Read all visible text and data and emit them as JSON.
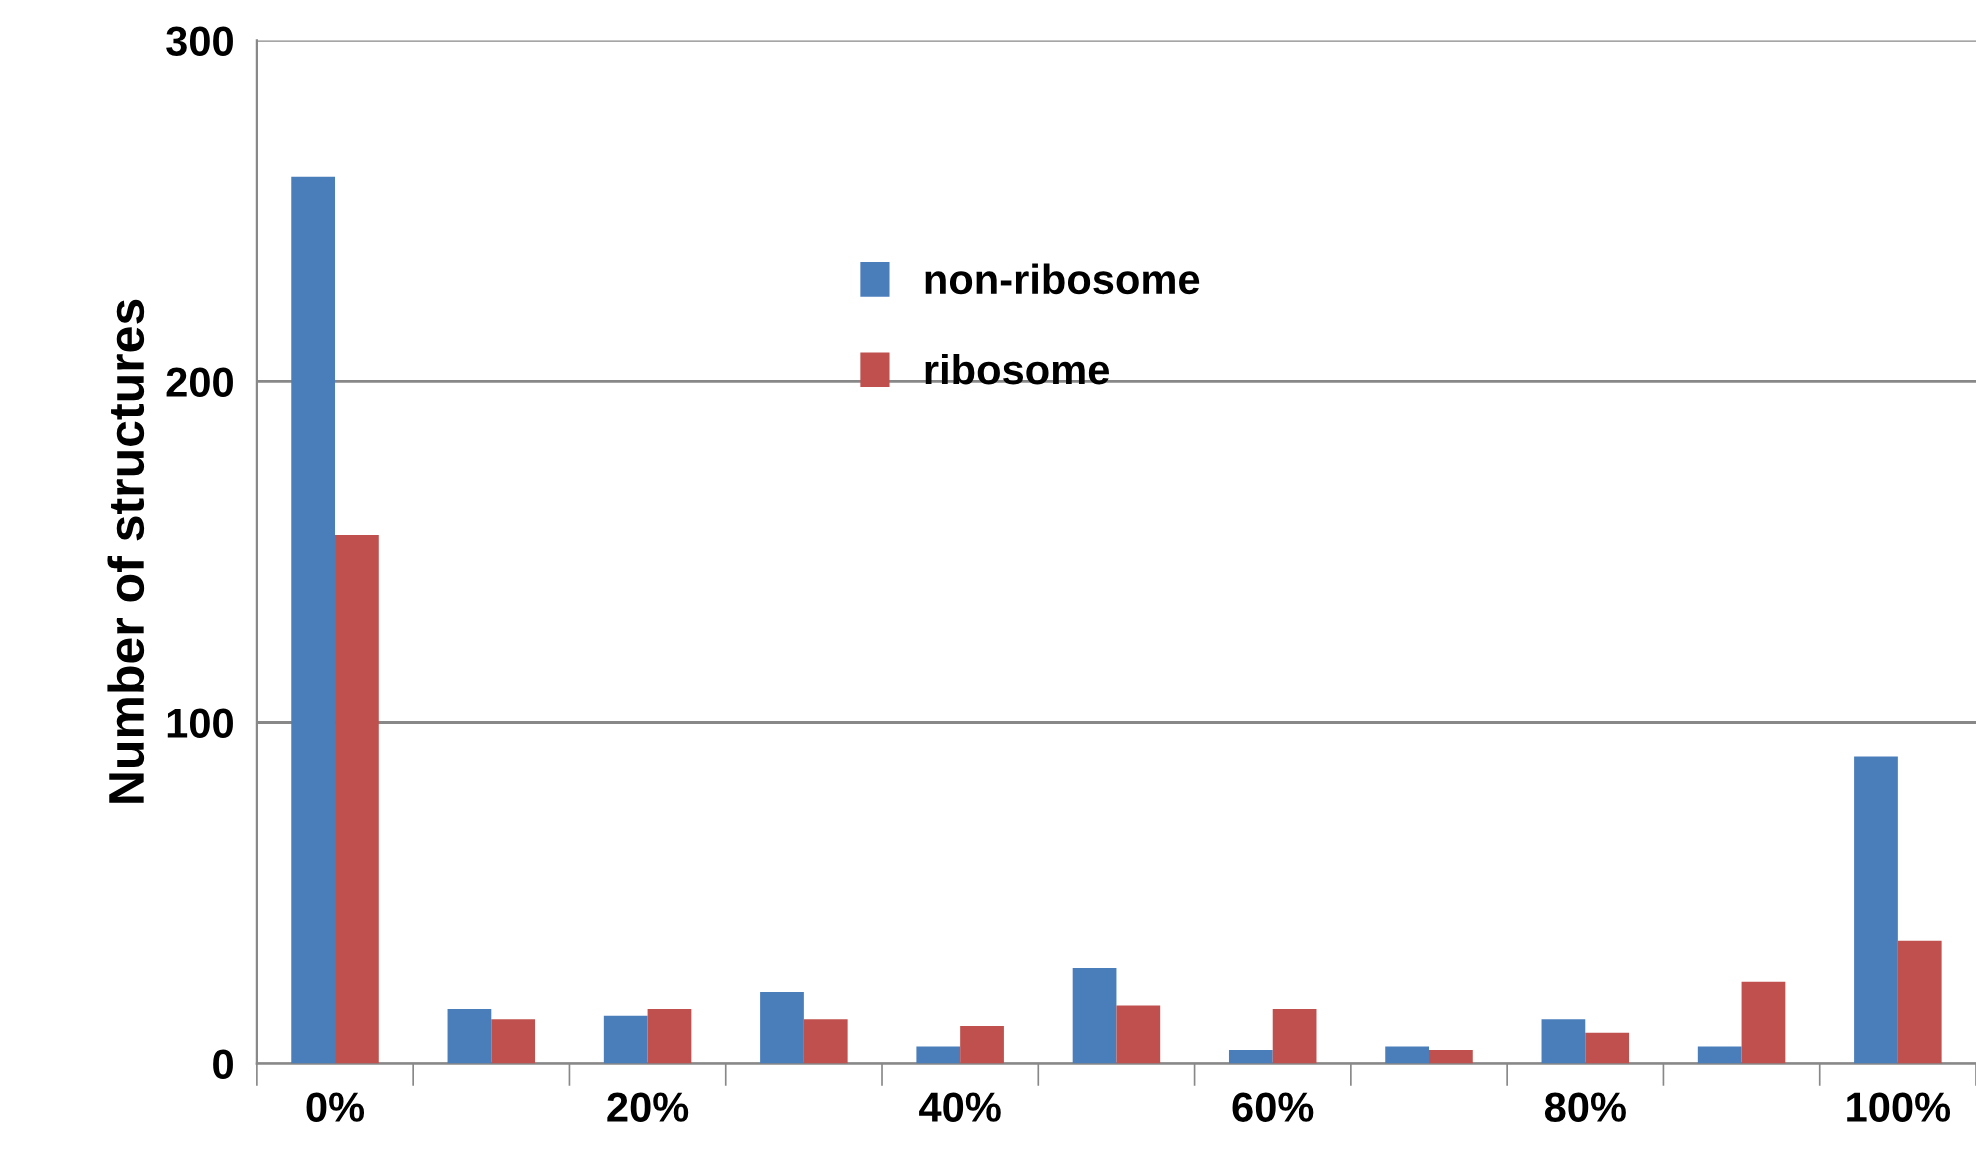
{
  "chart_data": {
    "type": "bar",
    "ylabel": "Number of structures",
    "categories": [
      "0%",
      null,
      "20%",
      null,
      "40%",
      null,
      "60%",
      null,
      "80%",
      null,
      "100%"
    ],
    "series": [
      {
        "name": "non-ribosome",
        "color": "#4a7ebb",
        "values": [
          260,
          16,
          14,
          21,
          5,
          28,
          4,
          5,
          13,
          5,
          90
        ]
      },
      {
        "name": "ribosome",
        "color": "#c0504d",
        "values": [
          155,
          13,
          16,
          13,
          11,
          17,
          16,
          4,
          9,
          24,
          36
        ]
      }
    ],
    "ylim": [
      0,
      300
    ],
    "yticks": [
      0,
      100,
      200,
      300
    ],
    "grid": "y",
    "legend": "top"
  }
}
